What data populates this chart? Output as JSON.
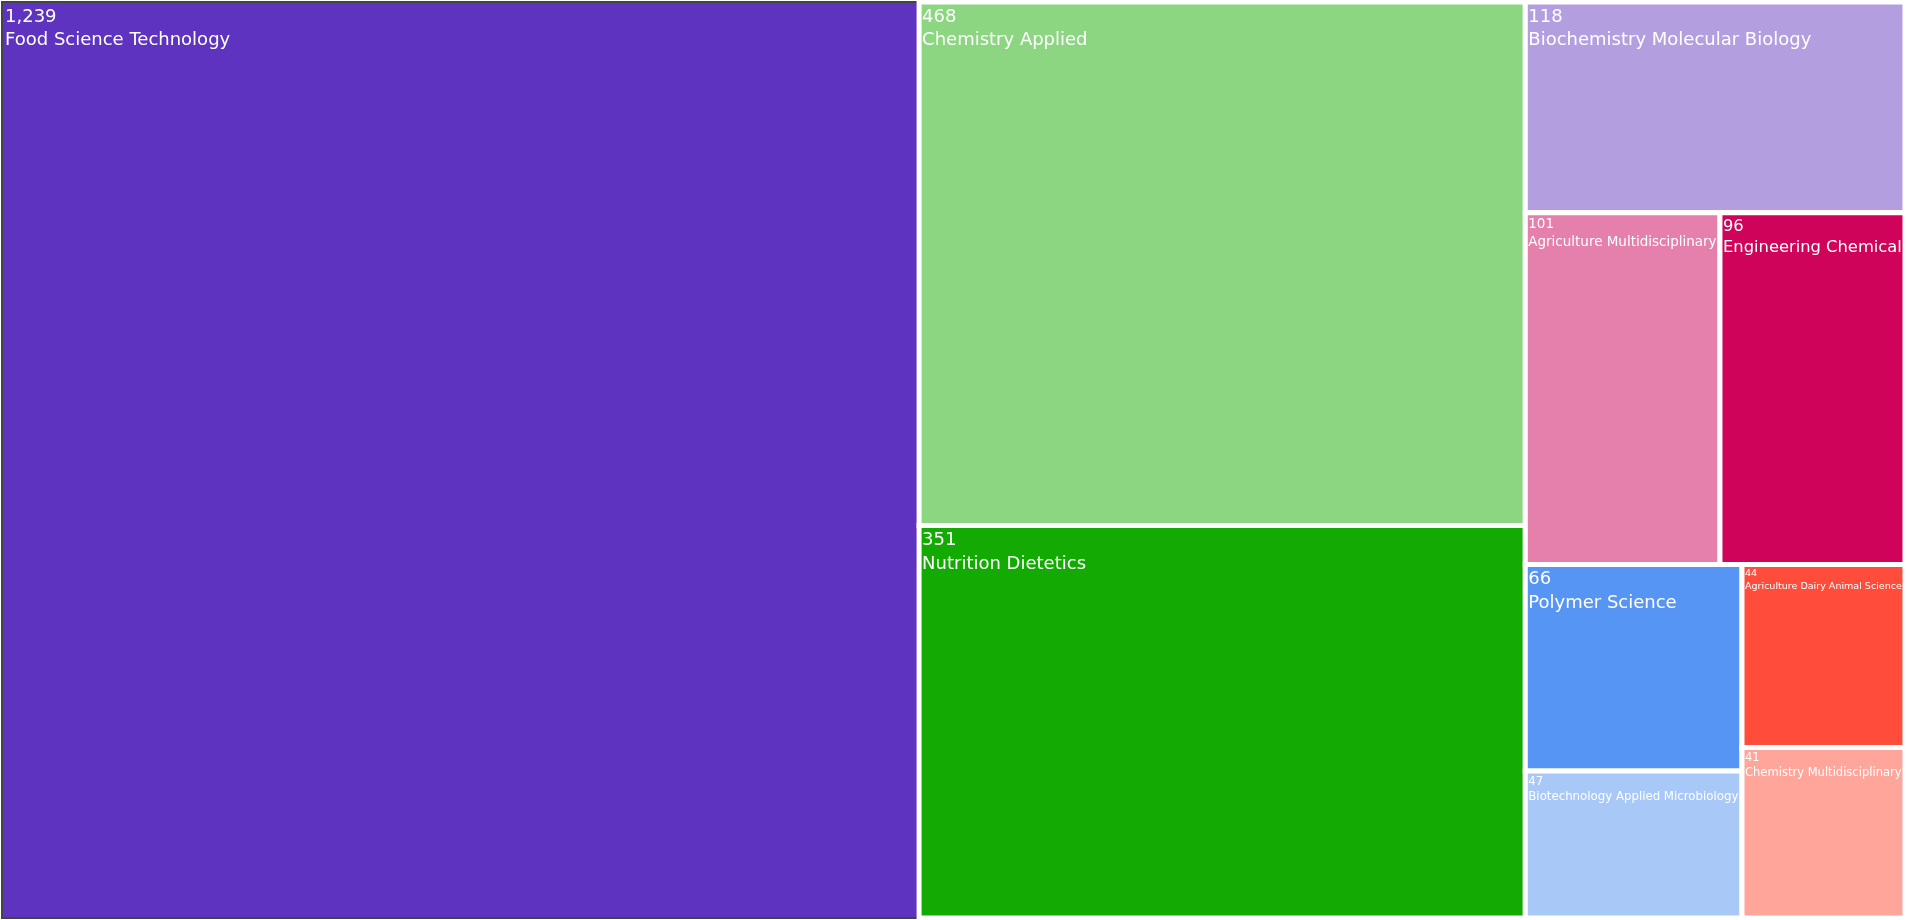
{
  "chart_data": {
    "type": "other",
    "categories": [
      "Food Science Technology",
      "Chemistry Applied",
      "Nutrition Dietetics",
      "Biochemistry Molecular Biology",
      "Agriculture Multidisciplinary",
      "Engineering Chemical",
      "Polymer Science",
      "Biotechnology Applied Microbiology",
      "Agriculture Dairy Animal Science",
      "Chemistry Multidisciplinary"
    ],
    "values": [
      1239,
      468,
      351,
      118,
      101,
      96,
      66,
      47,
      44,
      41
    ],
    "colors": [
      "#5e33bf",
      "#8cd682",
      "#14aa04",
      "#b39fdf",
      "#e57fab",
      "#cf0359",
      "#5795f4",
      "#a8c8f8",
      "#ff4c3b",
      "#ffa59a"
    ],
    "value_labels": [
      "1,239",
      "468",
      "351",
      "118",
      "101",
      "96",
      "66",
      "47",
      "44",
      "41"
    ]
  }
}
